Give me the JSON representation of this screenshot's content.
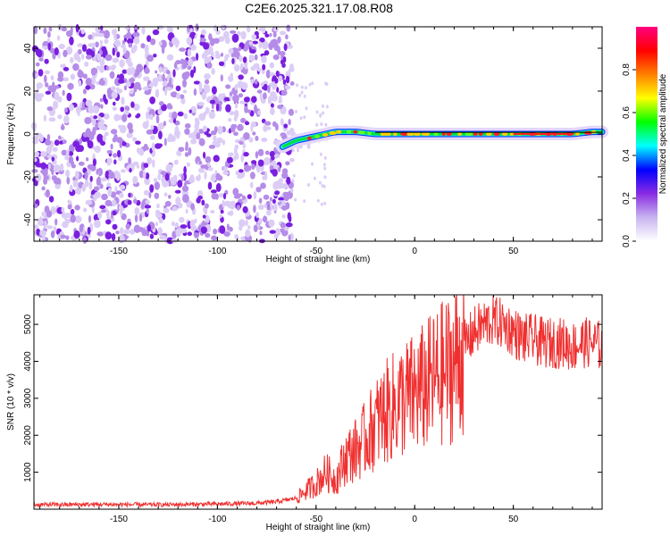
{
  "title": "C2E6.2025.321.17.08.R08",
  "chart_data": [
    {
      "type": "heatmap",
      "name": "spectrogram",
      "xlabel": "Height of straight line (km)",
      "ylabel": "Frequency (Hz)",
      "xlim": [
        -193,
        95
      ],
      "ylim": [
        -50,
        50
      ],
      "xticks": [
        -150,
        -100,
        -50,
        0,
        50
      ],
      "yticks": [
        -40,
        -20,
        0,
        20,
        40
      ],
      "noise_region_x": [
        -193,
        -62
      ],
      "signal_track": {
        "x": [
          -67,
          -60,
          -50,
          -40,
          -30,
          -20,
          -10,
          0,
          10,
          20,
          30,
          40,
          50,
          60,
          70,
          80,
          90,
          95
        ],
        "freq": [
          -6,
          -3,
          -1,
          1,
          1,
          0,
          0,
          0,
          0,
          0,
          0,
          0,
          0,
          0,
          0,
          0,
          1,
          1
        ]
      },
      "colorbar": {
        "label": "Normalized spectral amplitude",
        "range": [
          0,
          1
        ],
        "ticks": [
          "0.0",
          "0.2",
          "0.4",
          "0.6",
          "0.8"
        ],
        "colors": [
          "#ffffff",
          "#c8b4f0",
          "#8a2be2",
          "#0000ff",
          "#00ffff",
          "#00ff00",
          "#ffff00",
          "#ff8000",
          "#ff0000",
          "#ff0080"
        ]
      }
    },
    {
      "type": "line",
      "name": "snr",
      "xlabel": "Height of straight line (km)",
      "ylabel": "SNR (10 * v/v)",
      "xlim": [
        -193,
        95
      ],
      "ylim": [
        0,
        5800
      ],
      "xticks": [
        -150,
        -100,
        -50,
        0,
        50
      ],
      "yticks": [
        1000,
        2000,
        3000,
        4000,
        5000
      ],
      "color": "#f03030",
      "series": [
        {
          "name": "SNR",
          "x": [
            -193,
            -160,
            -130,
            -100,
            -80,
            -70,
            -60,
            -55,
            -50,
            -45,
            -40,
            -35,
            -30,
            -25,
            -20,
            -15,
            -10,
            -5,
            0,
            5,
            10,
            15,
            20,
            25,
            30,
            35,
            40,
            45,
            50,
            55,
            60,
            65,
            70,
            75,
            80,
            85,
            90,
            95
          ],
          "values": [
            120,
            130,
            120,
            140,
            160,
            200,
            300,
            500,
            700,
            1000,
            800,
            1400,
            1600,
            1900,
            2300,
            2600,
            2800,
            3000,
            3100,
            3300,
            3500,
            3700,
            3900,
            4400,
            4800,
            5000,
            5100,
            5000,
            4800,
            4600,
            4600,
            4500,
            4500,
            4500,
            4400,
            4500,
            4500,
            4400
          ]
        }
      ]
    }
  ]
}
